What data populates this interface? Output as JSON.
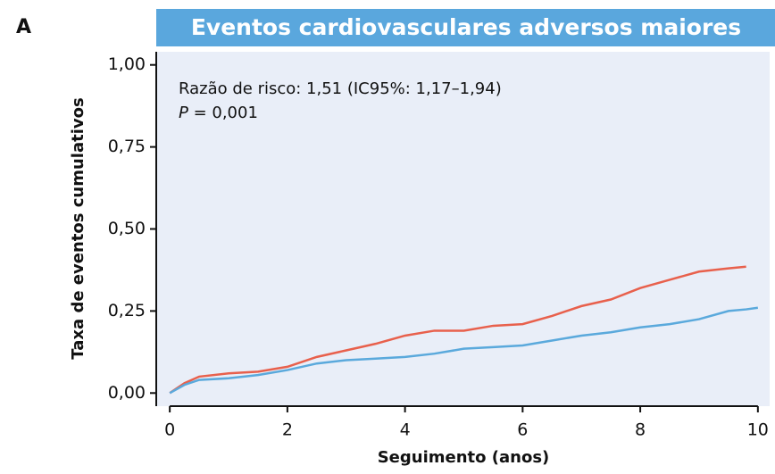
{
  "panel_label": "A",
  "chart_data": {
    "type": "line",
    "title": "Eventos cardiovasculares adversos maiores",
    "xlabel": "Seguimento (anos)",
    "ylabel": "Taxa de eventos cumulativos",
    "annotation_lines": [
      "Razão de risco: 1,51 (IC95%: 1,17–1,94)",
      [
        "P",
        " = 0,001"
      ]
    ],
    "x": [
      0,
      0.25,
      0.5,
      1,
      1.5,
      2,
      2.5,
      3,
      3.5,
      4,
      4.5,
      5,
      5.5,
      6,
      6.5,
      7,
      7.5,
      8,
      8.5,
      9,
      9.5,
      9.8,
      10
    ],
    "series": [
      {
        "color": "#e8604c",
        "values": [
          0,
          0.03,
          0.05,
          0.06,
          0.065,
          0.08,
          0.11,
          0.13,
          0.15,
          0.175,
          0.19,
          0.19,
          0.205,
          0.21,
          0.235,
          0.265,
          0.285,
          0.32,
          0.345,
          0.37,
          0.38,
          0.385,
          null
        ]
      },
      {
        "color": "#5aa9dc",
        "values": [
          0,
          0.025,
          0.04,
          0.045,
          0.055,
          0.07,
          0.09,
          0.1,
          0.105,
          0.11,
          0.12,
          0.135,
          0.14,
          0.145,
          0.16,
          0.175,
          0.185,
          0.2,
          0.21,
          0.225,
          0.25,
          0.255,
          0.26
        ]
      }
    ],
    "xlim": [
      -0.23,
      10.2
    ],
    "ylim": [
      -0.04,
      1.04
    ],
    "xticks": [
      0,
      2,
      4,
      6,
      8,
      10
    ],
    "yticks": [
      {
        "value": 0,
        "label": "0,00"
      },
      {
        "value": 0.25,
        "label": "0,25"
      },
      {
        "value": 0.5,
        "label": "0,50"
      },
      {
        "value": 0.75,
        "label": "0,75"
      },
      {
        "value": 1,
        "label": "1,00"
      }
    ],
    "grid": false,
    "title_background": "#5aa7dd",
    "plot_background": "#e9eef8"
  }
}
